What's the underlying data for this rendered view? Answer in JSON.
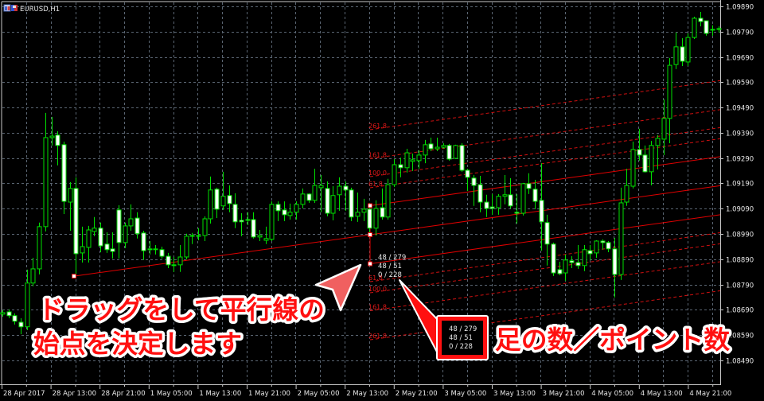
{
  "window": {
    "symbol_title": "EURUSD,H1"
  },
  "price_axis": [
    "1.09890",
    "1.09790",
    "1.09690",
    "1.09590",
    "1.09490",
    "1.09390",
    "1.09290",
    "1.09190",
    "1.09090",
    "1.08990",
    "1.08890",
    "1.08790",
    "1.08690",
    "1.08590",
    "1.08490"
  ],
  "time_axis": [
    "28 Apr 2017",
    "28 Apr 13:00",
    "28 Apr 21:00",
    "1 May 05:00",
    "1 May 13:00",
    "1 May 21:00",
    "2 May 05:00",
    "2 May 13:00",
    "2 May 21:00",
    "3 May 05:00",
    "3 May 13:00",
    "3 May 21:00",
    "4 May 05:00",
    "4 May 13:00",
    "4 May 21:00"
  ],
  "fibo_channel": {
    "color": "#e00000",
    "levels": [
      "61.8",
      "100.0",
      "161.8",
      "261.8"
    ],
    "readout": [
      "48 / 279",
      "48 / 51",
      "0 / 228"
    ]
  },
  "callout_box": {
    "lines": [
      "48 / 279",
      "48 / 51",
      "0 / 228"
    ]
  },
  "annotations": {
    "left_line1": "ドラッグをして平行線の",
    "left_line2": "始点を決定します",
    "right": "足の数／ポイント数",
    "text_color": "#ff1010",
    "arrow_color": "#f06060"
  },
  "chart_data": {
    "type": "candlestick",
    "symbol": "EURUSD",
    "timeframe": "H1",
    "bull_color": "#00e000",
    "bear_fill": "#ffffff",
    "ylim": [
      1.0849,
      1.0989
    ],
    "columns": [
      "open",
      "high",
      "low",
      "close"
    ],
    "candles": [
      [
        1.08673,
        1.08689,
        1.08663,
        1.08679
      ],
      [
        1.08682,
        1.08692,
        1.08657,
        1.08667
      ],
      [
        1.08667,
        1.08676,
        1.08632,
        1.08645
      ],
      [
        1.08641,
        1.08657,
        1.08594,
        1.08623
      ],
      [
        1.08623,
        1.08849,
        1.0861,
        1.08796
      ],
      [
        1.08796,
        1.08896,
        1.08783,
        1.08852
      ],
      [
        1.08852,
        1.09035,
        1.0883,
        1.09019
      ],
      [
        1.09019,
        1.09469,
        1.09,
        1.09371
      ],
      [
        1.09371,
        1.09453,
        1.0934,
        1.09377
      ],
      [
        1.09381,
        1.09396,
        1.09261,
        1.0934
      ],
      [
        1.09343,
        1.09355,
        1.09069,
        1.09119
      ],
      [
        1.09116,
        1.09195,
        1.09003,
        1.0917
      ],
      [
        1.0917,
        1.09214,
        1.08824,
        1.08912
      ],
      [
        1.08915,
        1.09019,
        1.08877,
        1.0894
      ],
      [
        1.08937,
        1.09022,
        1.08877,
        1.09006
      ],
      [
        1.09,
        1.09057,
        1.08981,
        1.09013
      ],
      [
        1.09013,
        1.09035,
        1.08918,
        1.08943
      ],
      [
        1.0895,
        1.08997,
        1.08915,
        1.08928
      ],
      [
        1.08931,
        1.08997,
        1.08893,
        1.08921
      ],
      [
        1.09085,
        1.09104,
        1.08893,
        1.08956
      ],
      [
        1.08956,
        1.09035,
        1.08934,
        1.09022
      ],
      [
        1.09022,
        1.09107,
        1.09003,
        1.0905
      ],
      [
        1.09053,
        1.09076,
        1.08972,
        1.08991
      ],
      [
        1.08994,
        1.09003,
        1.08887,
        1.08924
      ],
      [
        1.08931,
        1.08962,
        1.08909,
        1.08928
      ],
      [
        1.08928,
        1.08946,
        1.08909,
        1.08931
      ],
      [
        1.08928,
        1.0894,
        1.08893,
        1.08902
      ],
      [
        1.08902,
        1.08915,
        1.08855,
        1.08868
      ],
      [
        1.08865,
        1.08899,
        1.0884,
        1.08868
      ],
      [
        1.08868,
        1.08946,
        1.0884,
        1.08899
      ],
      [
        1.08899,
        1.08991,
        1.0889,
        1.08981
      ],
      [
        1.08981,
        1.08994,
        1.0895,
        1.08984
      ],
      [
        1.08984,
        1.09013,
        1.08965,
        1.08981
      ],
      [
        1.08984,
        1.0906,
        1.08962,
        1.0905
      ],
      [
        1.0905,
        1.09217,
        1.09031,
        1.09164
      ],
      [
        1.09167,
        1.09173,
        1.09053,
        1.09088
      ],
      [
        1.09101,
        1.09236,
        1.09085,
        1.09139
      ],
      [
        1.09142,
        1.09182,
        1.09076,
        1.0911
      ],
      [
        1.09107,
        1.09151,
        1.09013,
        1.09038
      ],
      [
        1.09044,
        1.09072,
        1.08981,
        1.09038
      ],
      [
        1.09044,
        1.09076,
        1.09025,
        1.09047
      ],
      [
        1.09047,
        1.09076,
        1.08972,
        1.08978
      ],
      [
        1.08978,
        1.09006,
        1.08962,
        1.08984
      ],
      [
        1.08965,
        1.09019,
        1.0895,
        1.08972
      ],
      [
        1.08969,
        1.09119,
        1.08962,
        1.09107
      ],
      [
        1.09107,
        1.09119,
        1.09041,
        1.09082
      ],
      [
        1.09085,
        1.09119,
        1.09041,
        1.09066
      ],
      [
        1.09063,
        1.0911,
        1.09047,
        1.09076
      ],
      [
        1.09076,
        1.09119,
        1.09047,
        1.09107
      ],
      [
        1.09107,
        1.0917,
        1.09091,
        1.09148
      ],
      [
        1.09148,
        1.09151,
        1.09113,
        1.09123
      ],
      [
        1.09123,
        1.09248,
        1.09113,
        1.09182
      ],
      [
        1.09173,
        1.09223,
        1.09076,
        1.09182
      ],
      [
        1.0917,
        1.09198,
        1.0906,
        1.09072
      ],
      [
        1.09072,
        1.09179,
        1.09044,
        1.09142
      ],
      [
        1.09145,
        1.09214,
        1.09082,
        1.09179
      ],
      [
        1.09179,
        1.09198,
        1.09082,
        1.09164
      ],
      [
        1.09164,
        1.09173,
        1.09041,
        1.09057
      ],
      [
        1.0906,
        1.09154,
        1.09038,
        1.09076
      ],
      [
        1.09076,
        1.09129,
        1.09041,
        1.09088
      ],
      [
        1.09088,
        1.09113,
        1.08981,
        1.09013
      ],
      [
        1.09013,
        1.09123,
        1.08984,
        1.09091
      ],
      [
        1.09094,
        1.0917,
        1.09047,
        1.09057
      ],
      [
        1.09057,
        1.09208,
        1.09047,
        1.09185
      ],
      [
        1.09185,
        1.09286,
        1.09176,
        1.09264
      ],
      [
        1.09264,
        1.09292,
        1.09214,
        1.09252
      ],
      [
        1.09252,
        1.09327,
        1.09233,
        1.09311
      ],
      [
        1.09277,
        1.09308,
        1.09239,
        1.09283
      ],
      [
        1.0928,
        1.09321,
        1.09248,
        1.09302
      ],
      [
        1.09302,
        1.09362,
        1.0927,
        1.09343
      ],
      [
        1.09346,
        1.09371,
        1.09318,
        1.09327
      ],
      [
        1.09327,
        1.09371,
        1.09318,
        1.09333
      ],
      [
        1.09333,
        1.09349,
        1.09327,
        1.0934
      ],
      [
        1.0934,
        1.09346,
        1.0928,
        1.09286
      ],
      [
        1.09289,
        1.09343,
        1.09286,
        1.0934
      ],
      [
        1.0934,
        1.09349,
        1.09236,
        1.09242
      ],
      [
        1.09242,
        1.09248,
        1.0916,
        1.09214
      ],
      [
        1.09211,
        1.09223,
        1.09101,
        1.09182
      ],
      [
        1.09185,
        1.0922,
        1.09076,
        1.09116
      ],
      [
        1.09116,
        1.09145,
        1.09057,
        1.09091
      ],
      [
        1.09097,
        1.09148,
        1.09066,
        1.09091
      ],
      [
        1.09094,
        1.09148,
        1.09066,
        1.09139
      ],
      [
        1.09139,
        1.09223,
        1.09107,
        1.09145
      ],
      [
        1.09145,
        1.09211,
        1.09091,
        1.09101
      ],
      [
        1.09076,
        1.09148,
        1.09031,
        1.09072
      ],
      [
        1.09072,
        1.09192,
        1.09063,
        1.09189
      ],
      [
        1.09189,
        1.0923,
        1.09148,
        1.0917
      ],
      [
        1.09167,
        1.09204,
        1.09088,
        1.09119
      ],
      [
        1.09123,
        1.0927,
        1.08924,
        1.09038
      ],
      [
        1.09035,
        1.09066,
        1.08865,
        1.0895
      ],
      [
        1.0895,
        1.08956,
        1.08824,
        1.08836
      ],
      [
        1.08849,
        1.0888,
        1.08827,
        1.08833
      ],
      [
        1.08836,
        1.08909,
        1.08805,
        1.08887
      ],
      [
        1.08884,
        1.08902,
        1.08855,
        1.08877
      ],
      [
        1.08877,
        1.08946,
        1.08852,
        1.08865
      ],
      [
        1.08865,
        1.08946,
        1.08843,
        1.08928
      ],
      [
        1.08924,
        1.08946,
        1.08887,
        1.08912
      ],
      [
        1.08915,
        1.08965,
        1.08896,
        1.08962
      ],
      [
        1.08962,
        1.08969,
        1.08928,
        1.08956
      ],
      [
        1.08956,
        1.08962,
        1.08918,
        1.08931
      ],
      [
        1.08931,
        1.08975,
        1.08739,
        1.0883
      ],
      [
        1.0883,
        1.09173,
        1.08808,
        1.09113
      ],
      [
        1.09116,
        1.09248,
        1.09101,
        1.09182
      ],
      [
        1.09179,
        1.09355,
        1.0917,
        1.09324
      ],
      [
        1.09324,
        1.09406,
        1.0928,
        1.09302
      ],
      [
        1.09302,
        1.0934,
        1.09233,
        1.09236
      ],
      [
        1.09236,
        1.09358,
        1.09182,
        1.0934
      ],
      [
        1.0934,
        1.09381,
        1.09245,
        1.09368
      ],
      [
        1.09365,
        1.09522,
        1.09302,
        1.09447
      ],
      [
        1.09447,
        1.09686,
        1.09349,
        1.09657
      ],
      [
        1.0966,
        1.09786,
        1.09642,
        1.0973
      ],
      [
        1.0973,
        1.09764,
        1.09654,
        1.09673
      ],
      [
        1.0967,
        1.09783,
        1.09654,
        1.09767
      ],
      [
        1.09767,
        1.09849,
        1.09761,
        1.09843
      ],
      [
        1.09843,
        1.09868,
        1.09811,
        1.0983
      ],
      [
        1.09833,
        1.09833,
        1.09774,
        1.09783
      ],
      [
        1.09799,
        1.09815,
        1.09774,
        1.09799
      ],
      [
        1.09799,
        1.09811,
        1.09786,
        1.09802
      ]
    ]
  }
}
